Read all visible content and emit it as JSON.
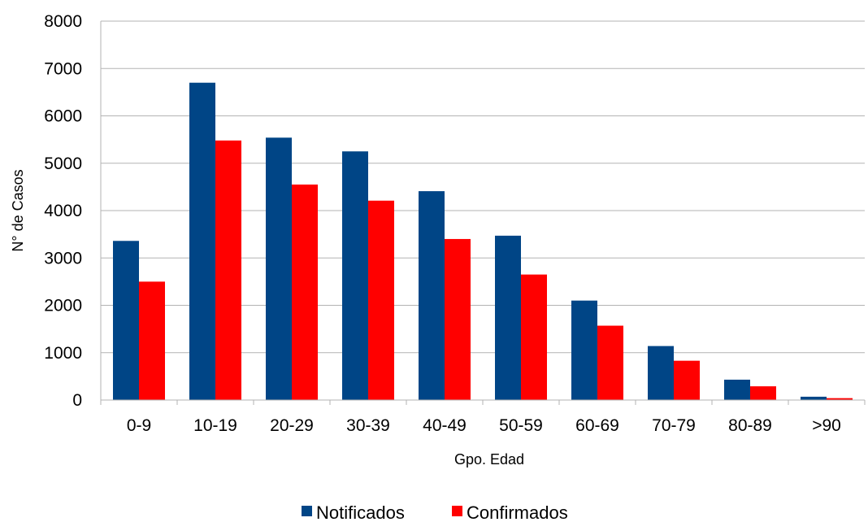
{
  "chart_data": {
    "type": "bar",
    "categories": [
      "0-9",
      "10-19",
      "20-29",
      "30-39",
      "40-49",
      "50-59",
      "60-69",
      "70-79",
      "80-89",
      ">90"
    ],
    "series": [
      {
        "name": "Notificados",
        "color": "#004586",
        "values": [
          3360,
          6700,
          5540,
          5250,
          4410,
          3470,
          2100,
          1140,
          430,
          70
        ]
      },
      {
        "name": "Confirmados",
        "color": "#ff0000",
        "values": [
          2500,
          5480,
          4550,
          4210,
          3400,
          2650,
          1570,
          830,
          290,
          40
        ]
      }
    ],
    "xlabel": "Gpo. Edad",
    "ylabel": "N° de Casos",
    "ylim": [
      0,
      8000
    ],
    "yticks": [
      "0",
      "1000",
      "2000",
      "3000",
      "4000",
      "5000",
      "6000",
      "7000",
      "8000"
    ],
    "grid": true,
    "legend_position": "bottom"
  }
}
